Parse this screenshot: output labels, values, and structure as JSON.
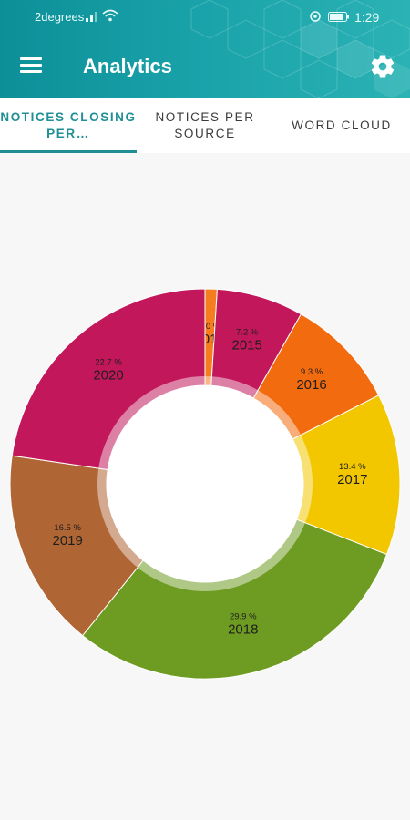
{
  "status_bar": {
    "carrier": "2degrees",
    "time": "1:29"
  },
  "app_bar": {
    "title": "Analytics",
    "menu_icon": "hamburger-menu-icon",
    "settings_icon": "gear-icon"
  },
  "tabs": [
    {
      "label": "NOTICES CLOSING PER…",
      "active": true
    },
    {
      "label": "NOTICES PER SOURCE",
      "active": false
    },
    {
      "label": "WORD CLOUD",
      "active": false
    }
  ],
  "colors": {
    "header": "#1aa3aa",
    "accent": "#1f8f95"
  },
  "chart_data": {
    "type": "pie",
    "donut": true,
    "title": "",
    "categories": [
      "2014",
      "2015",
      "2016",
      "2017",
      "2018",
      "2019",
      "2020"
    ],
    "values": [
      1.0,
      7.2,
      9.3,
      13.4,
      29.9,
      16.5,
      22.7
    ],
    "value_labels": [
      "1.0 %",
      "7.2 %",
      "9.3 %",
      "13.4 %",
      "29.9 %",
      "16.5 %",
      "22.7 %"
    ],
    "colors": [
      "#f57c1f",
      "#c2185b",
      "#f26b0f",
      "#f2c700",
      "#6e9b21",
      "#b06535",
      "#c2185b"
    ]
  }
}
